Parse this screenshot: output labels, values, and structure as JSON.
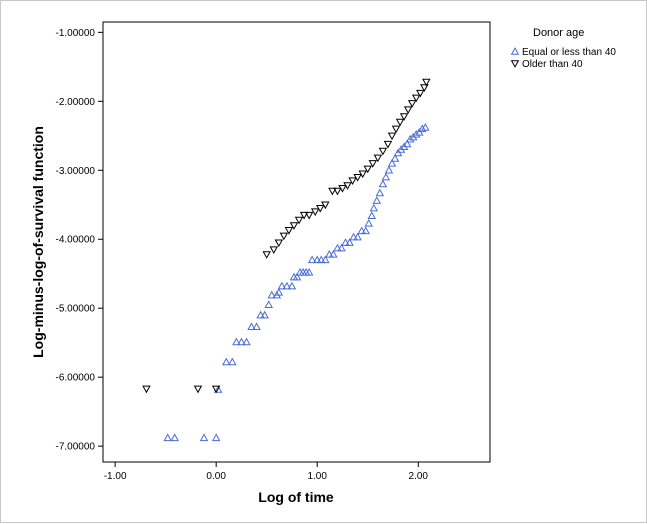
{
  "chart_data": {
    "type": "scatter",
    "xlabel": "Log of time",
    "ylabel": "Log-minus-log-of-survival function",
    "xlim": [
      -1.12,
      2.71
    ],
    "ylim": [
      -7.23,
      -0.85
    ],
    "x_ticks": [
      -1.0,
      0.0,
      1.0,
      2.0
    ],
    "x_tick_labels": [
      "-1.00",
      "0.00",
      "1.00",
      "2.00"
    ],
    "y_ticks": [
      -1.0,
      -2.0,
      -3.0,
      -4.0,
      -5.0,
      -6.0,
      -7.0
    ],
    "y_tick_labels": [
      "-1.00000",
      "-2.00000",
      "-3.00000",
      "-4.00000",
      "-5.00000",
      "-6.00000",
      "-7.00000"
    ],
    "grid": false,
    "legend": {
      "title": "Donor age",
      "placement": "right"
    },
    "series": [
      {
        "name": "Equal or less than 40",
        "marker": "triangle-up",
        "color": "#4a6bd6",
        "points": [
          [
            -0.48,
            -6.88
          ],
          [
            -0.41,
            -6.88
          ],
          [
            -0.12,
            -6.88
          ],
          [
            0.0,
            -6.88
          ],
          [
            0.02,
            -6.18
          ],
          [
            0.1,
            -5.78
          ],
          [
            0.16,
            -5.78
          ],
          [
            0.2,
            -5.49
          ],
          [
            0.25,
            -5.49
          ],
          [
            0.3,
            -5.49
          ],
          [
            0.35,
            -5.27
          ],
          [
            0.4,
            -5.27
          ],
          [
            0.44,
            -5.1
          ],
          [
            0.48,
            -5.1
          ],
          [
            0.52,
            -4.95
          ],
          [
            0.55,
            -4.81
          ],
          [
            0.6,
            -4.81
          ],
          [
            0.62,
            -4.77
          ],
          [
            0.65,
            -4.68
          ],
          [
            0.7,
            -4.68
          ],
          [
            0.75,
            -4.68
          ],
          [
            0.77,
            -4.55
          ],
          [
            0.8,
            -4.55
          ],
          [
            0.83,
            -4.48
          ],
          [
            0.86,
            -4.48
          ],
          [
            0.89,
            -4.48
          ],
          [
            0.92,
            -4.48
          ],
          [
            0.95,
            -4.3
          ],
          [
            1.0,
            -4.3
          ],
          [
            1.04,
            -4.3
          ],
          [
            1.08,
            -4.3
          ],
          [
            1.12,
            -4.22
          ],
          [
            1.16,
            -4.22
          ],
          [
            1.2,
            -4.13
          ],
          [
            1.24,
            -4.13
          ],
          [
            1.28,
            -4.05
          ],
          [
            1.32,
            -4.05
          ],
          [
            1.36,
            -3.97
          ],
          [
            1.4,
            -3.97
          ],
          [
            1.44,
            -3.88
          ],
          [
            1.48,
            -3.88
          ],
          [
            1.51,
            -3.77
          ],
          [
            1.54,
            -3.66
          ],
          [
            1.56,
            -3.55
          ],
          [
            1.59,
            -3.44
          ],
          [
            1.62,
            -3.33
          ],
          [
            1.65,
            -3.2
          ],
          [
            1.68,
            -3.1
          ],
          [
            1.71,
            -3.0
          ],
          [
            1.74,
            -2.9
          ],
          [
            1.77,
            -2.83
          ],
          [
            1.8,
            -2.75
          ],
          [
            1.83,
            -2.7
          ],
          [
            1.86,
            -2.66
          ],
          [
            1.89,
            -2.62
          ],
          [
            1.92,
            -2.55
          ],
          [
            1.95,
            -2.52
          ],
          [
            1.98,
            -2.48
          ],
          [
            2.01,
            -2.45
          ],
          [
            2.04,
            -2.4
          ],
          [
            2.07,
            -2.38
          ]
        ]
      },
      {
        "name": "Older than 40",
        "marker": "triangle-down",
        "color": "#000000",
        "points": [
          [
            -0.69,
            -6.17
          ],
          [
            -0.18,
            -6.17
          ],
          [
            0.0,
            -6.17
          ],
          [
            0.5,
            -4.22
          ],
          [
            0.57,
            -4.15
          ],
          [
            0.62,
            -4.05
          ],
          [
            0.67,
            -3.95
          ],
          [
            0.72,
            -3.87
          ],
          [
            0.77,
            -3.8
          ],
          [
            0.82,
            -3.72
          ],
          [
            0.87,
            -3.65
          ],
          [
            0.92,
            -3.65
          ],
          [
            0.98,
            -3.6
          ],
          [
            1.03,
            -3.55
          ],
          [
            1.08,
            -3.5
          ],
          [
            1.15,
            -3.3
          ],
          [
            1.2,
            -3.3
          ],
          [
            1.25,
            -3.26
          ],
          [
            1.3,
            -3.22
          ],
          [
            1.35,
            -3.15
          ],
          [
            1.4,
            -3.1
          ],
          [
            1.45,
            -3.05
          ],
          [
            1.5,
            -2.98
          ],
          [
            1.55,
            -2.9
          ],
          [
            1.6,
            -2.82
          ],
          [
            1.65,
            -2.72
          ],
          [
            1.7,
            -2.62
          ],
          [
            1.74,
            -2.5
          ],
          [
            1.78,
            -2.4
          ],
          [
            1.82,
            -2.3
          ],
          [
            1.86,
            -2.22
          ],
          [
            1.9,
            -2.12
          ],
          [
            1.94,
            -2.03
          ],
          [
            1.98,
            -1.95
          ],
          [
            2.02,
            -1.88
          ],
          [
            2.06,
            -1.8
          ],
          [
            2.08,
            -1.72
          ]
        ]
      }
    ]
  }
}
